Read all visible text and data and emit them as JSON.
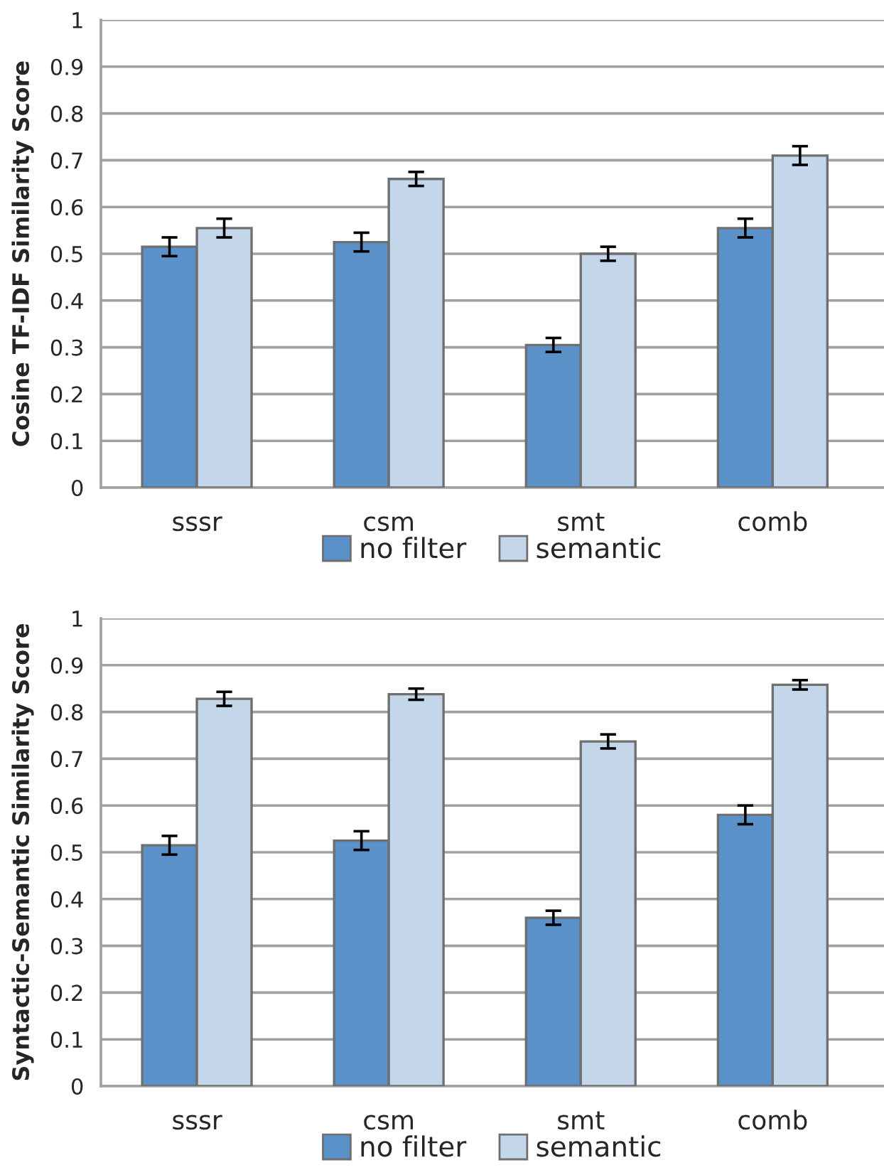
{
  "chart_data": [
    {
      "type": "bar",
      "ylabel": "Cosine TF-IDF Similarity Score",
      "categories": [
        "sssr",
        "csm",
        "smt",
        "comb"
      ],
      "ylim": [
        0,
        1
      ],
      "yticks": [
        0,
        0.1,
        0.2,
        0.3,
        0.4,
        0.5,
        0.6,
        0.7,
        0.8,
        0.9,
        1
      ],
      "grid": "y",
      "legend": "bottom",
      "series": [
        {
          "name": "no filter",
          "color": "#5a91c8",
          "values": [
            0.515,
            0.525,
            0.305,
            0.555
          ],
          "errors": [
            0.02,
            0.02,
            0.015,
            0.02
          ]
        },
        {
          "name": "semantic",
          "color": "#c3d6ea",
          "values": [
            0.555,
            0.66,
            0.5,
            0.71
          ],
          "errors": [
            0.02,
            0.015,
            0.015,
            0.02
          ]
        }
      ]
    },
    {
      "type": "bar",
      "ylabel": "Syntactic-Semantic Similarity Score",
      "categories": [
        "sssr",
        "csm",
        "smt",
        "comb"
      ],
      "ylim": [
        0,
        1
      ],
      "yticks": [
        0,
        0.1,
        0.2,
        0.3,
        0.4,
        0.5,
        0.6,
        0.7,
        0.8,
        0.9,
        1
      ],
      "grid": "y",
      "legend": "bottom",
      "series": [
        {
          "name": "no filter",
          "color": "#5a91c8",
          "values": [
            0.515,
            0.525,
            0.36,
            0.58
          ],
          "errors": [
            0.02,
            0.02,
            0.015,
            0.02
          ]
        },
        {
          "name": "semantic",
          "color": "#c3d6ea",
          "values": [
            0.828,
            0.838,
            0.737,
            0.858
          ],
          "errors": [
            0.015,
            0.012,
            0.015,
            0.01
          ]
        }
      ]
    }
  ]
}
